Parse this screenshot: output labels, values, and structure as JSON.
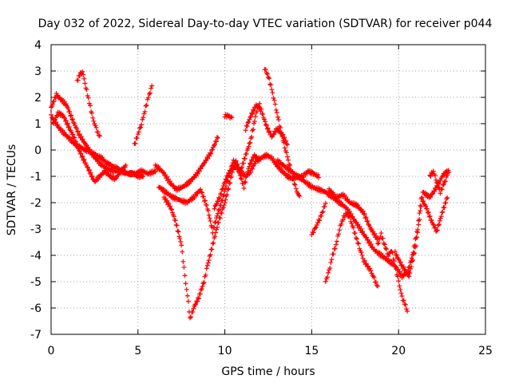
{
  "chart_data": {
    "type": "scatter",
    "title": "Day 032 of 2022, Sidereal Day-to-day VTEC variation (SDTVAR) for receiver p044",
    "xlabel": "GPS time / hours",
    "ylabel": "SDTVAR / TECUs",
    "xlim": [
      0,
      25
    ],
    "ylim": [
      -7,
      4
    ],
    "xticks": [
      0,
      5,
      10,
      15,
      20,
      25
    ],
    "yticks": [
      -7,
      -6,
      -5,
      -4,
      -3,
      -2,
      -1,
      0,
      1,
      2,
      3,
      4
    ],
    "grid": true,
    "marker": "plus",
    "color": "#ff0000",
    "series": [
      {
        "name": "trace-1",
        "x": [
          0.0,
          0.3,
          0.6,
          0.9,
          1.2,
          1.6,
          2.0,
          2.4,
          2.8,
          3.2,
          3.6,
          4.0,
          4.4,
          4.8,
          5.2,
          5.6,
          6.0
        ],
        "y": [
          1.6,
          2.1,
          1.9,
          1.7,
          1.2,
          0.6,
          0.2,
          -0.2,
          -0.5,
          -0.7,
          -0.8,
          -0.8,
          -0.9,
          -0.9,
          -0.8,
          -0.9,
          -0.8
        ]
      },
      {
        "name": "trace-2",
        "x": [
          0.0,
          0.2,
          0.5,
          0.8,
          1.1,
          1.4,
          1.7,
          2.0,
          2.3,
          2.6,
          2.9,
          3.2,
          3.5,
          3.8,
          4.1,
          4.4,
          4.7,
          5.0,
          5.3
        ],
        "y": [
          1.3,
          1.1,
          0.8,
          0.6,
          0.4,
          0.2,
          0.1,
          0.0,
          -0.1,
          -0.2,
          -0.3,
          -0.5,
          -0.6,
          -0.7,
          -0.8,
          -0.9,
          -0.9,
          -1.0,
          -1.0
        ]
      },
      {
        "name": "trace-3",
        "x": [
          0.1,
          0.4,
          0.7,
          1.0,
          1.3,
          1.6,
          1.9,
          2.2,
          2.5,
          2.8,
          3.1,
          3.4,
          3.7,
          4.0,
          4.3
        ],
        "y": [
          1.0,
          1.4,
          1.3,
          0.9,
          0.5,
          0.0,
          -0.4,
          -0.8,
          -1.2,
          -1.0,
          -0.8,
          -1.0,
          -1.1,
          -0.8,
          -0.6
        ]
      },
      {
        "name": "trace-4",
        "x": [
          1.5,
          1.6,
          1.8,
          2.0,
          2.2,
          2.4,
          2.6,
          2.8
        ],
        "y": [
          2.6,
          2.8,
          3.0,
          2.4,
          1.8,
          1.2,
          0.8,
          0.5
        ]
      },
      {
        "name": "trace-5",
        "x": [
          4.8,
          5.0,
          5.2,
          5.4,
          5.6,
          5.8
        ],
        "y": [
          0.2,
          0.6,
          1.0,
          1.5,
          2.0,
          2.4
        ]
      },
      {
        "name": "trace-6",
        "x": [
          6.0,
          6.4,
          6.8,
          7.2,
          7.6,
          8.0,
          8.4,
          8.8,
          9.2,
          9.6
        ],
        "y": [
          -0.6,
          -0.8,
          -1.2,
          -1.5,
          -1.4,
          -1.2,
          -0.9,
          -0.5,
          -0.1,
          0.5
        ]
      },
      {
        "name": "trace-7",
        "x": [
          6.5,
          6.9,
          7.2,
          7.5,
          7.7,
          7.9,
          8.0,
          8.2,
          8.5,
          8.8,
          9.0,
          9.3,
          9.6,
          10.0,
          10.3,
          10.6,
          10.9,
          11.2,
          11.5,
          11.8,
          12.0
        ],
        "y": [
          -1.8,
          -2.2,
          -2.8,
          -3.6,
          -4.8,
          -5.8,
          -6.4,
          -6.0,
          -5.6,
          -5.0,
          -4.4,
          -3.6,
          -2.8,
          -2.0,
          -1.2,
          -0.4,
          -0.8,
          -0.2,
          0.4,
          1.4,
          1.8
        ]
      },
      {
        "name": "trace-8",
        "x": [
          6.2,
          6.6,
          7.0,
          7.4,
          7.8,
          8.2,
          8.6,
          9.0,
          9.3,
          9.6,
          9.9,
          10.2,
          10.5,
          10.8,
          11.1,
          11.4,
          11.7,
          12.0
        ],
        "y": [
          -1.4,
          -1.6,
          -1.8,
          -1.9,
          -2.0,
          -1.8,
          -1.5,
          -2.2,
          -3.1,
          -2.4,
          -1.8,
          -1.0,
          -0.4,
          -0.8,
          -1.4,
          -0.6,
          -0.2,
          -0.4
        ]
      },
      {
        "name": "trace-9",
        "x": [
          9.4,
          9.7,
          10.0,
          10.3,
          10.6,
          10.9,
          11.2,
          11.5,
          11.8,
          12.1,
          12.4,
          12.7,
          13.0,
          13.3,
          13.6,
          13.9,
          14.2,
          14.5,
          14.8,
          15.1,
          15.4
        ],
        "y": [
          -2.2,
          -1.8,
          -1.2,
          -0.8,
          -0.6,
          -0.8,
          -1.0,
          -0.8,
          -0.4,
          -0.3,
          -0.2,
          -0.3,
          -0.6,
          -0.8,
          -1.0,
          -1.1,
          -1.0,
          -1.0,
          -0.8,
          -0.9,
          -1.0
        ]
      },
      {
        "name": "trace-10",
        "x": [
          12.3,
          12.5,
          12.7,
          12.9,
          13.1,
          13.3,
          13.5,
          13.7,
          13.9,
          14.1,
          14.3
        ],
        "y": [
          3.1,
          2.8,
          2.3,
          1.7,
          1.1,
          0.5,
          0.0,
          -0.5,
          -1.0,
          -1.5,
          -1.8
        ]
      },
      {
        "name": "trace-11",
        "x": [
          11.2,
          11.5,
          11.8,
          12.1,
          12.4,
          12.7,
          13.0,
          13.3,
          13.6
        ],
        "y": [
          0.8,
          1.3,
          1.7,
          1.5,
          0.9,
          0.5,
          0.8,
          0.6,
          0.2
        ]
      },
      {
        "name": "trace-12",
        "x": [
          10.0,
          10.2,
          10.4
        ],
        "y": [
          1.3,
          1.3,
          1.2
        ]
      },
      {
        "name": "trace-13",
        "x": [
          13.0,
          13.4,
          13.8,
          14.2,
          14.6,
          15.0,
          15.4,
          15.8,
          16.2,
          16.6,
          17.0,
          17.4,
          17.8,
          18.2,
          18.6,
          19.0,
          19.4,
          19.8,
          20.2,
          20.6
        ],
        "y": [
          -0.4,
          -0.6,
          -0.8,
          -1.0,
          -1.2,
          -1.4,
          -1.5,
          -1.6,
          -1.8,
          -2.0,
          -2.2,
          -2.6,
          -3.0,
          -3.4,
          -3.8,
          -4.0,
          -4.2,
          -4.4,
          -4.8,
          -4.6
        ]
      },
      {
        "name": "trace-14",
        "x": [
          15.0,
          15.2,
          15.4,
          15.6,
          15.8
        ],
        "y": [
          -3.2,
          -3.0,
          -2.7,
          -2.4,
          -2.0
        ]
      },
      {
        "name": "trace-15",
        "x": [
          15.8,
          16.0,
          16.2,
          16.4,
          16.6,
          16.8,
          17.0,
          17.2,
          17.4,
          17.6,
          17.8,
          18.0,
          18.2,
          18.4,
          18.6,
          18.8
        ],
        "y": [
          -5.0,
          -4.6,
          -4.0,
          -3.6,
          -3.0,
          -2.6,
          -2.4,
          -2.6,
          -3.0,
          -3.4,
          -3.8,
          -4.2,
          -4.4,
          -4.6,
          -4.9,
          -5.2
        ]
      },
      {
        "name": "trace-16",
        "x": [
          16.0,
          16.4,
          16.8,
          17.2,
          17.6,
          18.0,
          18.4,
          18.8
        ],
        "y": [
          -1.5,
          -1.8,
          -1.7,
          -2.0,
          -2.1,
          -2.4,
          -3.0,
          -3.4
        ]
      },
      {
        "name": "trace-17",
        "x": [
          18.8,
          19.0,
          19.2,
          19.4,
          19.6,
          19.8,
          20.0,
          20.2,
          20.4,
          20.5
        ],
        "y": [
          -3.6,
          -3.2,
          -3.6,
          -4.0,
          -3.8,
          -4.4,
          -5.0,
          -5.6,
          -5.9,
          -6.1
        ]
      },
      {
        "name": "trace-18",
        "x": [
          19.8,
          20.2,
          20.6,
          21.0,
          21.2,
          21.4,
          21.8,
          22.2,
          22.6,
          22.9
        ],
        "y": [
          -3.9,
          -4.4,
          -4.8,
          -3.6,
          -2.6,
          -1.6,
          -1.8,
          -1.4,
          -0.9,
          -0.8
        ]
      },
      {
        "name": "trace-19",
        "x": [
          20.5,
          20.8,
          21.1,
          21.3,
          21.6,
          21.9,
          22.2,
          22.5,
          22.8
        ],
        "y": [
          -4.7,
          -4.0,
          -3.0,
          -1.8,
          -2.2,
          -2.7,
          -3.1,
          -2.4,
          -1.8
        ]
      },
      {
        "name": "trace-20",
        "x": [
          21.8,
          22.0,
          22.2,
          22.4,
          22.6,
          22.8
        ],
        "y": [
          -1.0,
          -0.8,
          -1.2,
          -1.6,
          -1.3,
          -1.0
        ]
      }
    ]
  }
}
